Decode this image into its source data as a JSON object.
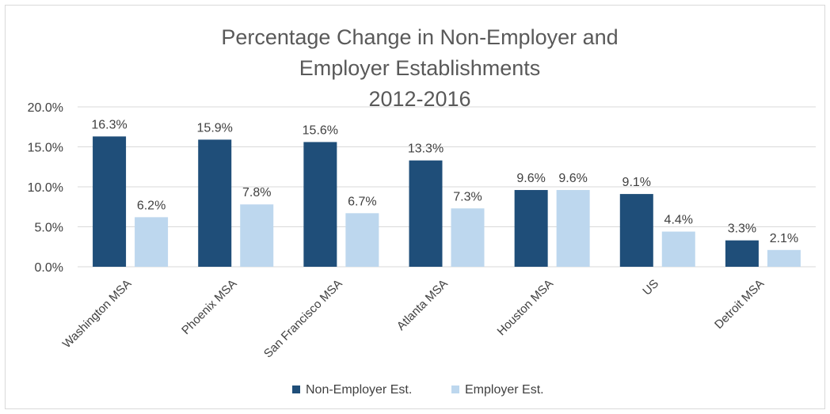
{
  "chart_data": {
    "type": "bar",
    "title_lines": [
      "Percentage Change in Non-Employer and",
      "Employer Establishments",
      "2012-2016"
    ],
    "categories": [
      "Washington MSA",
      "Phoenix MSA",
      "San Francisco MSA",
      "Atlanta MSA",
      "Houston MSA",
      "US",
      "Detroit MSA"
    ],
    "series": [
      {
        "name": "Non-Employer Est.",
        "color": "#1f4e79",
        "values": [
          16.3,
          15.9,
          15.6,
          13.3,
          9.6,
          9.1,
          3.3
        ],
        "labels": [
          "16.3%",
          "15.9%",
          "15.6%",
          "13.3%",
          "9.6%",
          "9.1%",
          "3.3%"
        ]
      },
      {
        "name": "Employer Est.",
        "color": "#bdd7ee",
        "values": [
          6.2,
          7.8,
          6.7,
          7.3,
          9.6,
          4.4,
          2.1
        ],
        "labels": [
          "6.2%",
          "7.8%",
          "6.7%",
          "7.3%",
          "9.6%",
          "4.4%",
          "2.1%"
        ]
      }
    ],
    "yticks": [
      0,
      5,
      10,
      15,
      20
    ],
    "ytick_labels": [
      "0.0%",
      "5.0%",
      "10.0%",
      "15.0%",
      "20.0%"
    ],
    "ylim": [
      0,
      20
    ],
    "grid": true,
    "legend_position": "bottom"
  }
}
